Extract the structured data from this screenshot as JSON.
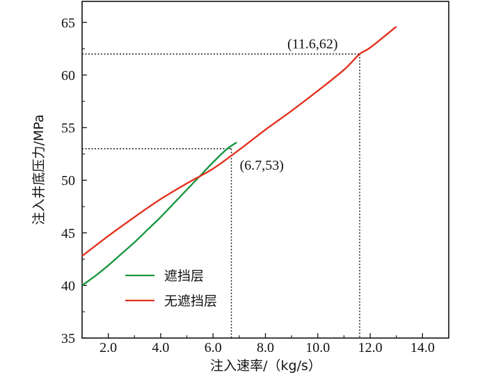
{
  "chart_data": {
    "type": "line",
    "xlabel": "注入速率/（kg/s）",
    "ylabel": "注入井底压力/MPa",
    "xlim": [
      1.0,
      15.0
    ],
    "ylim": [
      35,
      67
    ],
    "x_ticks": [
      2.0,
      4.0,
      6.0,
      8.0,
      10.0,
      12.0,
      14.0
    ],
    "x_tick_labels": [
      "2.0",
      "4.0",
      "6.0",
      "8.0",
      "10.0",
      "12.0",
      "14.0"
    ],
    "y_ticks": [
      35,
      40,
      45,
      50,
      55,
      60,
      65
    ],
    "y_tick_labels": [
      "35",
      "40",
      "45",
      "50",
      "55",
      "60",
      "65"
    ],
    "grid": false,
    "legend_position": "bottom-left",
    "series": [
      {
        "name": "遮挡层",
        "color": "#1a9641",
        "x": [
          1.0,
          1.5,
          2.0,
          2.5,
          3.0,
          3.5,
          4.0,
          4.5,
          5.0,
          5.5,
          6.0,
          6.5,
          6.9
        ],
        "y": [
          40.0,
          40.9,
          41.9,
          43.0,
          44.1,
          45.3,
          46.5,
          47.8,
          49.1,
          50.4,
          51.7,
          52.9,
          53.6
        ]
      },
      {
        "name": "无遮挡层",
        "color": "#e2321e",
        "x": [
          1.0,
          2.0,
          3.0,
          4.0,
          5.0,
          6.0,
          7.0,
          8.0,
          9.0,
          10.0,
          11.0,
          11.6,
          12.0,
          13.0
        ],
        "y": [
          42.8,
          44.7,
          46.5,
          48.2,
          49.7,
          51.1,
          52.9,
          54.8,
          56.6,
          58.5,
          60.5,
          62.0,
          62.6,
          64.6
        ]
      }
    ],
    "reference_points": [
      {
        "label": "(6.7,53)",
        "x": 6.7,
        "y": 53
      },
      {
        "label": "(11.6,62)",
        "x": 11.6,
        "y": 62
      }
    ]
  }
}
